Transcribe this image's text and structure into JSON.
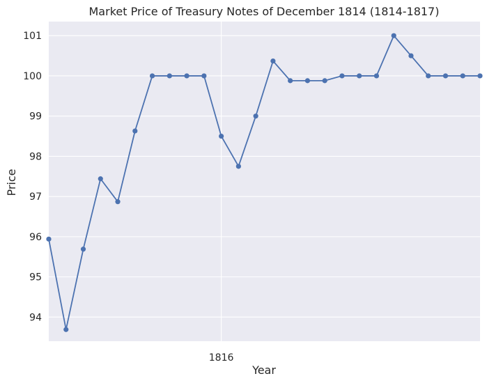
{
  "chart_data": {
    "type": "line",
    "title": "Market Price of Treasury Notes of December 1814 (1814-1817)",
    "xlabel": "Year",
    "ylabel": "Price",
    "x_tick_labels": [
      {
        "x": "1816-01",
        "label": "1816"
      }
    ],
    "y_ticks": [
      94,
      95,
      96,
      97,
      98,
      99,
      100,
      101
    ],
    "x_range": [
      "1815-03",
      "1817-04"
    ],
    "y_range": [
      93.4,
      101.35
    ],
    "grid": true,
    "colors": {
      "background": "#eaeaf2",
      "grid": "#ffffff",
      "series": "#4c72b0"
    },
    "series": [
      {
        "points": [
          {
            "x": "1815-03",
            "y": 95.94
          },
          {
            "x": "1815-04",
            "y": 93.69
          },
          {
            "x": "1815-05",
            "y": 95.69
          },
          {
            "x": "1815-06",
            "y": 97.44
          },
          {
            "x": "1815-07",
            "y": 96.87
          },
          {
            "x": "1815-08",
            "y": 98.63
          },
          {
            "x": "1815-09",
            "y": 100.0
          },
          {
            "x": "1815-10",
            "y": 100.0
          },
          {
            "x": "1815-11",
            "y": 100.0
          },
          {
            "x": "1815-12",
            "y": 100.0
          },
          {
            "x": "1816-01",
            "y": 98.5
          },
          {
            "x": "1816-02",
            "y": 97.75
          },
          {
            "x": "1816-03",
            "y": 99.0
          },
          {
            "x": "1816-04",
            "y": 100.37
          },
          {
            "x": "1816-05",
            "y": 99.88
          },
          {
            "x": "1816-06",
            "y": 99.88
          },
          {
            "x": "1816-07",
            "y": 99.88
          },
          {
            "x": "1816-08",
            "y": 100.0
          },
          {
            "x": "1816-09",
            "y": 100.0
          },
          {
            "x": "1816-10",
            "y": 100.0
          },
          {
            "x": "1816-11",
            "y": 101.0
          },
          {
            "x": "1816-12",
            "y": 100.5
          },
          {
            "x": "1817-01",
            "y": 100.0
          },
          {
            "x": "1817-02",
            "y": 100.0
          },
          {
            "x": "1817-03",
            "y": 100.0
          },
          {
            "x": "1817-04",
            "y": 100.0
          }
        ]
      }
    ]
  }
}
